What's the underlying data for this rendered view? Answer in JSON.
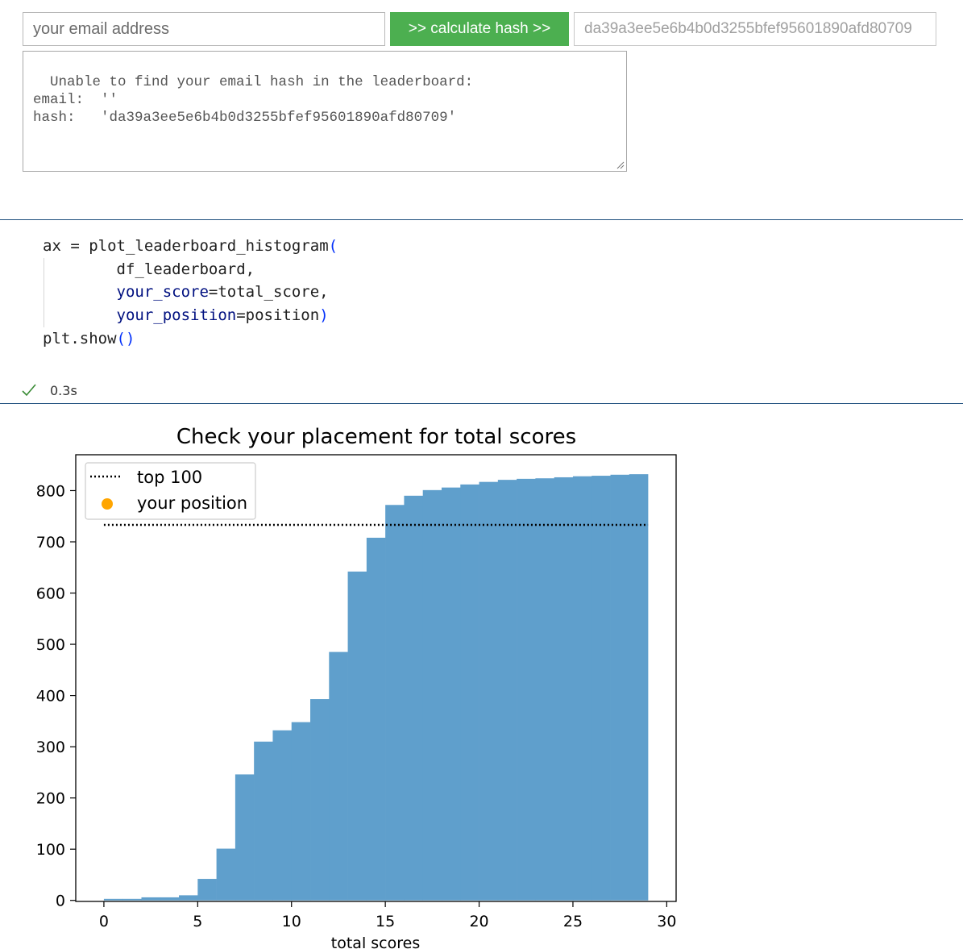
{
  "form": {
    "email_placeholder": "your email address",
    "email_value": "",
    "button_label": ">> calculate hash >>",
    "hash_value": "da39a3ee5e6b4b0d3255bfef95601890afd80709"
  },
  "result": {
    "text": "Unable to find your email hash in the leaderboard:\nemail:  ''\nhash:   'da39a3ee5e6b4b0d3255bfef95601890afd80709'"
  },
  "code_cell": {
    "lines": [
      [
        {
          "t": "ax ",
          "c": "pu"
        },
        {
          "t": "=",
          "c": "pu"
        },
        {
          "t": " plot_leaderboard_histogram",
          "c": "pu"
        },
        {
          "t": "(",
          "c": "par"
        }
      ],
      [
        {
          "t": "        df_leaderboard,",
          "c": "pu"
        }
      ],
      [
        {
          "t": "        ",
          "c": "pu"
        },
        {
          "t": "your_score",
          "c": "kw"
        },
        {
          "t": "=total_score,",
          "c": "pu"
        }
      ],
      [
        {
          "t": "        ",
          "c": "pu"
        },
        {
          "t": "your_position",
          "c": "kw"
        },
        {
          "t": "=position",
          "c": "pu"
        },
        {
          "t": ")",
          "c": "par"
        }
      ],
      [
        {
          "t": "plt.show",
          "c": "pu"
        },
        {
          "t": "()",
          "c": "par"
        }
      ]
    ],
    "exec_time": "0.3s",
    "status_color": "#388a34"
  },
  "chart_data": {
    "type": "bar",
    "title": "Check your placement for total scores",
    "xlabel": "total scores",
    "ylabel": "",
    "xlim": [
      -1.5,
      30.5
    ],
    "ylim": [
      -2,
      870
    ],
    "xticks": [
      0,
      5,
      10,
      15,
      20,
      25,
      30
    ],
    "yticks": [
      0,
      100,
      200,
      300,
      400,
      500,
      600,
      700,
      800
    ],
    "bin_edges": [
      0,
      1,
      2,
      3,
      4,
      5,
      6,
      7,
      8,
      9,
      10,
      11,
      12,
      13,
      14,
      15,
      16,
      17,
      18,
      19,
      20,
      21,
      22,
      23,
      24,
      25,
      26,
      27,
      28,
      29
    ],
    "values": [
      3,
      3,
      6,
      6,
      10,
      42,
      101,
      246,
      310,
      332,
      348,
      393,
      485,
      642,
      708,
      772,
      790,
      801,
      806,
      812,
      817,
      821,
      823,
      824,
      826,
      828,
      829,
      831,
      832
    ],
    "bar_color": "#5f9fcc",
    "top100": {
      "label": "top 100",
      "y": 733,
      "x_range": [
        0,
        29
      ],
      "color": "#000000"
    },
    "your_position": {
      "label": "your position",
      "color": "#ffa500"
    },
    "legend_position": "upper-left",
    "grid": false
  }
}
